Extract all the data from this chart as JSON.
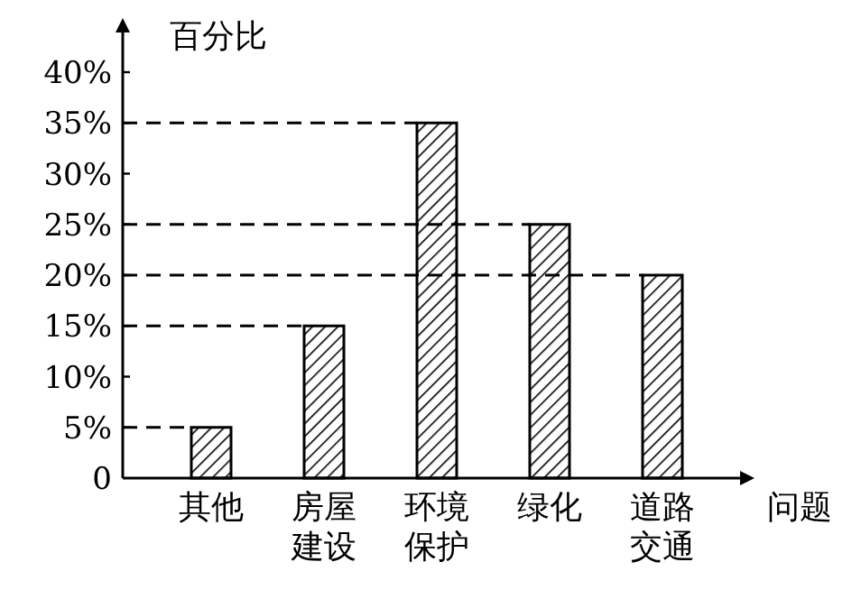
{
  "chart_data": {
    "type": "bar",
    "ylabel": "百分比",
    "xlabel": "问题",
    "categories": [
      "其他",
      "房屋建设",
      "环境保护",
      "绿化",
      "道路交通"
    ],
    "values": [
      5,
      15,
      35,
      25,
      20
    ],
    "color": "#000000",
    "ylim": [
      0,
      40
    ],
    "yticks": [
      0,
      {
        "value": 5,
        "label": "5%"
      },
      {
        "value": 10,
        "label": "10%"
      },
      {
        "value": 15,
        "label": "15%"
      },
      {
        "value": 20,
        "label": "20%"
      },
      {
        "value": 25,
        "label": "25%"
      },
      {
        "value": 30,
        "label": "30%"
      },
      {
        "value": 35,
        "label": "35%"
      },
      {
        "value": 40,
        "label": "40%"
      }
    ],
    "ref_lines": [
      {
        "axis": "y",
        "value": 5,
        "line_style": "dashed"
      },
      {
        "axis": "y",
        "value": 15,
        "line_style": "dashed"
      },
      {
        "axis": "y",
        "value": 35,
        "line_style": "dashed"
      },
      {
        "axis": "y",
        "value": 25,
        "line_style": "dashed"
      },
      {
        "axis": "y",
        "value": 20,
        "line_style": "dashed"
      }
    ]
  }
}
